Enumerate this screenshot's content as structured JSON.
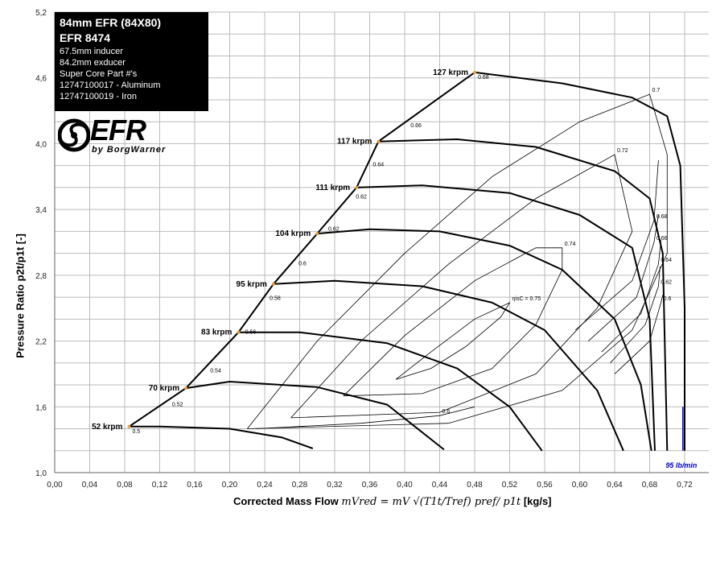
{
  "info_box": {
    "title": "84mm EFR  (84X80)",
    "model": "EFR 8474",
    "lines": [
      "67.5mm inducer",
      "84.2mm exducer",
      "Super Core Part #'s",
      "12747100017 - Aluminum",
      "12747100019 - Iron"
    ]
  },
  "logo": {
    "main": "EFR",
    "sub": "by BorgWarner"
  },
  "chart_data": {
    "type": "line",
    "xlabel": "Corrected Mass Flow",
    "xlabel_formula": "mVred = mV √(T1t/Tref) pref/ p1t",
    "xlabel_unit": "[kg/s]",
    "ylabel": "Pressure Ratio p2t/p1t [-]",
    "xlim": [
      0,
      0.72
    ],
    "ylim": [
      1.0,
      5.2
    ],
    "grid": true,
    "x_ticks": [
      "0,00",
      "0,04",
      "0,08",
      "0,12",
      "0,16",
      "0,20",
      "0,24",
      "0,28",
      "0,32",
      "0,36",
      "0,40",
      "0,44",
      "0,48",
      "0,52",
      "0,56",
      "0,60",
      "0,64",
      "0,68",
      "0,72"
    ],
    "y_ticks": [
      "1,0",
      "1,6",
      "2,2",
      "2,8",
      "3,4",
      "4,0",
      "4,6",
      "5,2"
    ],
    "surge_line": [
      [
        0.085,
        1.42
      ],
      [
        0.15,
        1.77
      ],
      [
        0.21,
        2.28
      ],
      [
        0.25,
        2.72
      ],
      [
        0.3,
        3.18
      ],
      [
        0.345,
        3.6
      ],
      [
        0.37,
        4.02
      ],
      [
        0.48,
        4.65
      ]
    ],
    "speed_lines": [
      {
        "name": "52 krpm",
        "points": [
          [
            0.085,
            1.42
          ],
          [
            0.12,
            1.42
          ],
          [
            0.2,
            1.4
          ],
          [
            0.26,
            1.32
          ],
          [
            0.295,
            1.22
          ]
        ]
      },
      {
        "name": "70 krpm",
        "points": [
          [
            0.15,
            1.77
          ],
          [
            0.2,
            1.83
          ],
          [
            0.3,
            1.78
          ],
          [
            0.38,
            1.62
          ],
          [
            0.445,
            1.21
          ]
        ]
      },
      {
        "name": "83 krpm",
        "points": [
          [
            0.21,
            2.28
          ],
          [
            0.28,
            2.28
          ],
          [
            0.38,
            2.18
          ],
          [
            0.46,
            1.95
          ],
          [
            0.52,
            1.6
          ],
          [
            0.557,
            1.2
          ]
        ]
      },
      {
        "name": "95 krpm",
        "points": [
          [
            0.25,
            2.72
          ],
          [
            0.32,
            2.75
          ],
          [
            0.42,
            2.7
          ],
          [
            0.5,
            2.55
          ],
          [
            0.56,
            2.3
          ],
          [
            0.62,
            1.75
          ],
          [
            0.65,
            1.2
          ]
        ]
      },
      {
        "name": "104 krpm",
        "points": [
          [
            0.3,
            3.18
          ],
          [
            0.36,
            3.22
          ],
          [
            0.44,
            3.2
          ],
          [
            0.52,
            3.07
          ],
          [
            0.58,
            2.85
          ],
          [
            0.64,
            2.4
          ],
          [
            0.67,
            1.8
          ],
          [
            0.682,
            1.2
          ]
        ]
      },
      {
        "name": "111 krpm",
        "points": [
          [
            0.345,
            3.6
          ],
          [
            0.42,
            3.62
          ],
          [
            0.52,
            3.55
          ],
          [
            0.6,
            3.35
          ],
          [
            0.66,
            3.05
          ],
          [
            0.68,
            2.4
          ],
          [
            0.686,
            1.2
          ]
        ]
      },
      {
        "name": "117 krpm",
        "points": [
          [
            0.37,
            4.02
          ],
          [
            0.46,
            4.04
          ],
          [
            0.55,
            3.97
          ],
          [
            0.64,
            3.75
          ],
          [
            0.68,
            3.5
          ],
          [
            0.695,
            3.0
          ],
          [
            0.7,
            1.2
          ]
        ]
      },
      {
        "name": "127 krpm",
        "points": [
          [
            0.48,
            4.65
          ],
          [
            0.58,
            4.55
          ],
          [
            0.66,
            4.42
          ],
          [
            0.7,
            4.25
          ],
          [
            0.715,
            3.8
          ],
          [
            0.72,
            2.5
          ],
          [
            0.72,
            1.2
          ]
        ]
      }
    ],
    "efficiency_contours": [
      {
        "label": "ηisC = 0.75",
        "points": [
          [
            0.39,
            1.85
          ],
          [
            0.43,
            1.95
          ],
          [
            0.47,
            2.15
          ],
          [
            0.51,
            2.42
          ],
          [
            0.52,
            2.55
          ],
          [
            0.48,
            2.4
          ],
          [
            0.43,
            2.1
          ],
          [
            0.39,
            1.85
          ]
        ]
      },
      {
        "label": "0.74",
        "points": [
          [
            0.33,
            1.7
          ],
          [
            0.42,
            1.72
          ],
          [
            0.5,
            1.95
          ],
          [
            0.55,
            2.35
          ],
          [
            0.58,
            2.85
          ],
          [
            0.58,
            3.05
          ],
          [
            0.55,
            3.05
          ],
          [
            0.48,
            2.75
          ],
          [
            0.4,
            2.25
          ],
          [
            0.33,
            1.7
          ]
        ]
      },
      {
        "label": "0.72",
        "points": [
          [
            0.27,
            1.5
          ],
          [
            0.44,
            1.55
          ],
          [
            0.55,
            1.9
          ],
          [
            0.62,
            2.5
          ],
          [
            0.66,
            3.2
          ],
          [
            0.64,
            3.9
          ],
          [
            0.55,
            3.5
          ],
          [
            0.45,
            2.9
          ],
          [
            0.35,
            2.2
          ],
          [
            0.27,
            1.5
          ]
        ]
      },
      {
        "label": "0.7",
        "points": [
          [
            0.22,
            1.4
          ],
          [
            0.45,
            1.45
          ],
          [
            0.58,
            1.75
          ],
          [
            0.66,
            2.3
          ],
          [
            0.7,
            3.0
          ],
          [
            0.7,
            3.9
          ],
          [
            0.68,
            4.45
          ],
          [
            0.6,
            4.2
          ],
          [
            0.5,
            3.7
          ],
          [
            0.4,
            3.0
          ],
          [
            0.3,
            2.2
          ],
          [
            0.22,
            1.4
          ]
        ]
      },
      {
        "label": "0.68",
        "points": [
          [
            0.595,
            2.3
          ],
          [
            0.66,
            2.75
          ],
          [
            0.685,
            3.3
          ],
          [
            0.69,
            3.85
          ]
        ]
      },
      {
        "label": "0.66",
        "points": [
          [
            0.61,
            2.2
          ],
          [
            0.665,
            2.6
          ],
          [
            0.685,
            3.1
          ],
          [
            0.69,
            3.35
          ]
        ]
      },
      {
        "label": "0.64",
        "points": [
          [
            0.625,
            2.1
          ],
          [
            0.67,
            2.45
          ],
          [
            0.69,
            2.9
          ],
          [
            0.693,
            3.12
          ]
        ]
      },
      {
        "label": "0.62",
        "points": [
          [
            0.635,
            2.0
          ],
          [
            0.675,
            2.35
          ],
          [
            0.69,
            2.7
          ],
          [
            0.692,
            2.88
          ]
        ]
      },
      {
        "label": "0.6",
        "points": [
          [
            0.64,
            1.9
          ],
          [
            0.68,
            2.2
          ],
          [
            0.693,
            2.55
          ],
          [
            0.695,
            2.62
          ]
        ]
      },
      {
        "label": "0.6",
        "points": [
          [
            0.23,
            1.4
          ],
          [
            0.35,
            1.45
          ],
          [
            0.44,
            1.52
          ],
          [
            0.48,
            1.6
          ]
        ]
      }
    ],
    "surge_labels": [
      "0.5",
      "0.52",
      "0.54",
      "0.56",
      "0.58",
      "0.6",
      "0.62",
      "0.62",
      "0.64",
      "0.66",
      "0.68"
    ],
    "annotation": {
      "text": "95 lb/min",
      "x": 0.718,
      "color": "#0000cc"
    }
  }
}
